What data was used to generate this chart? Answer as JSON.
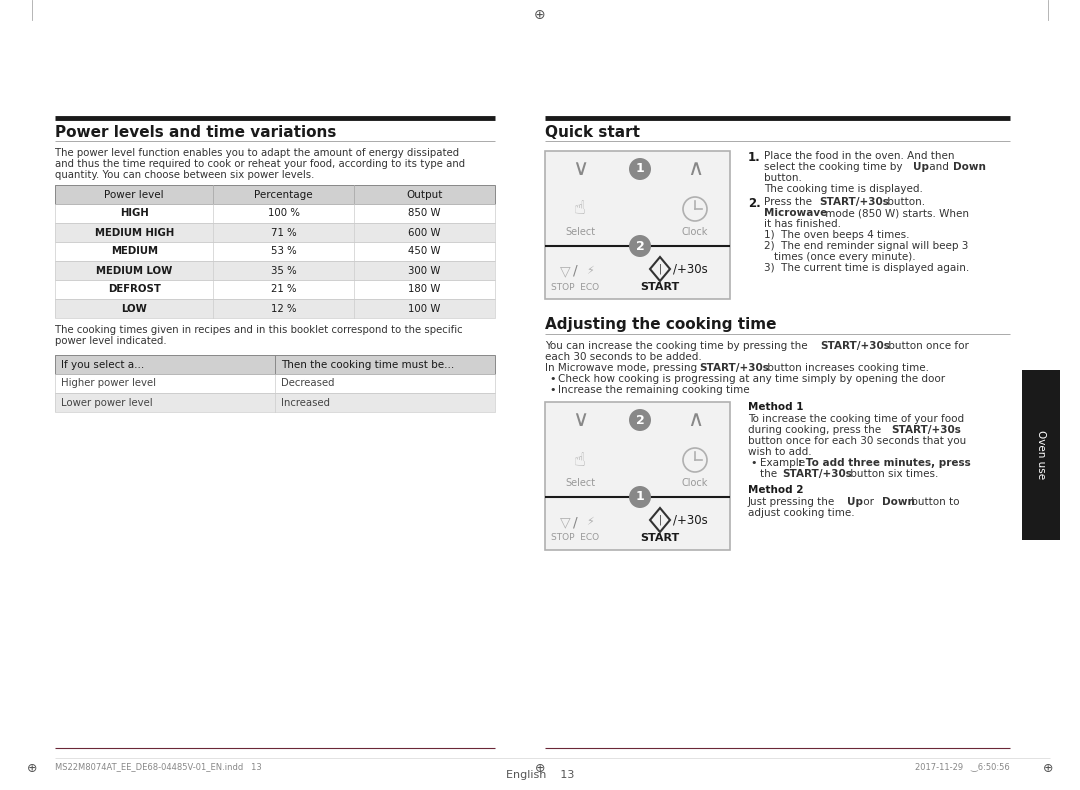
{
  "bg_color": "#ffffff",
  "left_section_title": "Power levels and time variations",
  "left_intro_lines": [
    "The power level function enables you to adapt the amount of energy dissipated",
    "and thus the time required to cook or reheat your food, according to its type and",
    "quantity. You can choose between six power levels."
  ],
  "table1_headers": [
    "Power level",
    "Percentage",
    "Output"
  ],
  "table1_rows": [
    [
      "HIGH",
      "100 %",
      "850 W"
    ],
    [
      "MEDIUM HIGH",
      "71 %",
      "600 W"
    ],
    [
      "MEDIUM",
      "53 %",
      "450 W"
    ],
    [
      "MEDIUM LOW",
      "35 %",
      "300 W"
    ],
    [
      "DEFROST",
      "21 %",
      "180 W"
    ],
    [
      "LOW",
      "12 %",
      "100 W"
    ]
  ],
  "table1_note_lines": [
    "The cooking times given in recipes and in this booklet correspond to the specific",
    "power level indicated."
  ],
  "table2_headers": [
    "If you select a...",
    "Then the cooking time must be..."
  ],
  "table2_rows": [
    [
      "Higher power level",
      "Decreased"
    ],
    [
      "Lower power level",
      "Increased"
    ]
  ],
  "right_section1_title": "Quick start",
  "right_section2_title": "Adjusting the cooking time",
  "right_section2_intro_lines": [
    "You can increase the cooking time by pressing the |START/+30s| button once for",
    "each 30 seconds to be added."
  ],
  "right_section2_para2": "In Microwave mode, pressing |START/+30s| button increases cooking time.",
  "right_section2_bullets": [
    "Check how cooking is progressing at any time simply by opening the door",
    "Increase the remaining cooking time"
  ],
  "method1_title": "Method 1",
  "method1_lines": [
    "To increase the cooking time of your food",
    "during cooking, press the |START/+30s|",
    "button once for each 30 seconds that you",
    "wish to add.",
    "BULLET|Example|: To add three minutes, press",
    "INDENT|the |START/+30s| button six times."
  ],
  "method2_title": "Method 2",
  "method2_lines": [
    "Just pressing the |Up| or |Down| button to",
    "adjust cooking time."
  ],
  "footer_left": "MS22M8074AT_EE_DE68-04485V-01_EN.indd   13",
  "footer_right": "2017-11-29   ‿6:50:56",
  "footer_center": "English    13",
  "header_bg": "#d0d0d0",
  "alt_row_bg": "#e8e8e8",
  "table_border": "#aaaaaa",
  "top_line_color": "#1a1a1a",
  "section_rule_color": "#aaaaaa",
  "sidebar_color": "#1a1a1a",
  "bottom_line_color": "#6b2737"
}
